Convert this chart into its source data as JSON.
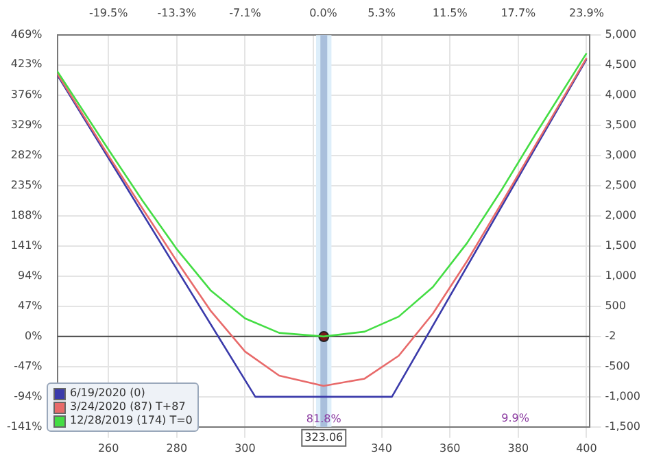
{
  "chart_data": {
    "type": "line",
    "marker": "none",
    "line_style": "solid",
    "grid": true,
    "legend": "bottom left",
    "xlim": [
      245,
      401
    ],
    "xticks": [
      260,
      280,
      300,
      {
        "value": 320,
        "label": null
      },
      340,
      360,
      380,
      400
    ],
    "x2lim": [
      -24.15,
      24.21
    ],
    "x2ticks": [
      {
        "value": -19.5,
        "label": "-19.5%"
      },
      {
        "value": -13.3,
        "label": "-13.3%"
      },
      {
        "value": -7.1,
        "label": "-7.1%"
      },
      {
        "value": 0,
        "label": "0.0%"
      },
      {
        "value": 5.3,
        "label": "5.3%"
      },
      {
        "value": 11.5,
        "label": "11.5%"
      },
      {
        "value": 17.7,
        "label": "17.7%"
      },
      {
        "value": 23.9,
        "label": "23.9%"
      }
    ],
    "ylim": [
      -1500,
      5000
    ],
    "yticks": [
      {
        "value": -1500,
        "label": "-1,500"
      },
      {
        "value": -1000,
        "label": "-1,000"
      },
      {
        "value": -500,
        "label": "-500"
      },
      {
        "value": -2,
        "label": "-2"
      },
      {
        "value": 500,
        "label": "500"
      },
      {
        "value": 1000,
        "label": "1,000"
      },
      {
        "value": 1500,
        "label": "1,500"
      },
      {
        "value": 2000,
        "label": "2,000"
      },
      {
        "value": 2500,
        "label": "2,500"
      },
      {
        "value": 3000,
        "label": "3,000"
      },
      {
        "value": 3500,
        "label": "3,500"
      },
      {
        "value": 4000,
        "label": "4,000"
      },
      {
        "value": 4500,
        "label": "4,500"
      },
      {
        "value": 5000,
        "label": "5,000"
      }
    ],
    "y2lim": [
      -141,
      469
    ],
    "y2ticks": [
      {
        "value": -141,
        "label": "-141%"
      },
      {
        "value": -94,
        "label": "-94%"
      },
      {
        "value": -47,
        "label": "-47%"
      },
      {
        "value": 0,
        "label": "0%"
      },
      {
        "value": 47,
        "label": "47%"
      },
      {
        "value": 94,
        "label": "94%"
      },
      {
        "value": 141,
        "label": "141%"
      },
      {
        "value": 188,
        "label": "188%"
      },
      {
        "value": 235,
        "label": "235%"
      },
      {
        "value": 282,
        "label": "282%"
      },
      {
        "value": 329,
        "label": "329%"
      },
      {
        "value": 376,
        "label": "376%"
      },
      {
        "value": 423,
        "label": "423%"
      },
      {
        "value": 469,
        "label": "469%"
      }
    ],
    "series": [
      {
        "name": "12/28/2019 (174) T=0",
        "color": "#44dd44",
        "x": [
          245,
          260,
          270,
          280,
          290,
          300,
          310,
          323,
          335,
          345,
          355,
          365,
          375,
          385,
          400
        ],
        "values": [
          4400,
          3100,
          2250,
          1450,
          760,
          300,
          60,
          0,
          80,
          330,
          820,
          1550,
          2420,
          3350,
          4700
        ]
      },
      {
        "name": "3/24/2020 (87) T+87",
        "color": "#e86a6a",
        "x": [
          245,
          260,
          270,
          280,
          290,
          300,
          310,
          323,
          335,
          345,
          355,
          365,
          375,
          385,
          400
        ],
        "values": [
          4360,
          3000,
          2120,
          1250,
          420,
          -250,
          -650,
          -820,
          -700,
          -320,
          380,
          1250,
          2200,
          3170,
          4620
        ]
      },
      {
        "name": "6/19/2020 (0)",
        "color": "#3a3aaa",
        "x": [
          245,
          303,
          343,
          400
        ],
        "values": [
          4340,
          -1000,
          -1000,
          4600
        ]
      },
      {
        "type": "scatter",
        "color": "#7a1a1a",
        "x": [
          323.06
        ],
        "values": [
          -2
        ],
        "marker": "circle"
      }
    ],
    "bands": [
      {
        "axis": "x",
        "from": 320.8,
        "to": 325.3,
        "color": "#ddeefa"
      }
    ],
    "ref_lines": [
      {
        "axis": "x",
        "value": 323.06,
        "label": "323.06",
        "color": "#a9bfdc"
      },
      {
        "axis": "y",
        "value": 0,
        "color": "#555555"
      }
    ],
    "annotations": [
      {
        "text": "81.8%",
        "x": 323.06,
        "y": -1380
      },
      "9.9%"
    ]
  }
}
